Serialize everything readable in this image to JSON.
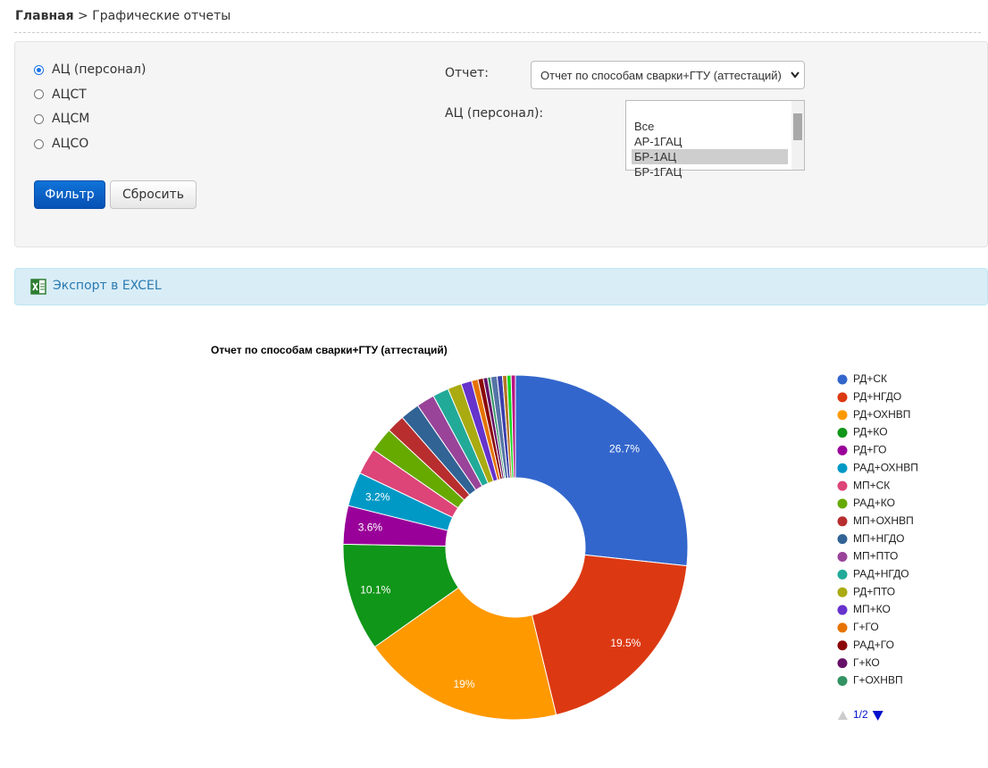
{
  "breadcrumb": {
    "home": "Главная",
    "separator": ">",
    "current": "Графические отчеты"
  },
  "filter": {
    "radios": [
      "АЦ (персонал)",
      "АЦСТ",
      "АЦСМ",
      "АЦСО"
    ],
    "report_label": "Отчет:",
    "report_value": "Отчет по способам сварки+ГТУ (аттестаций)",
    "list_label": "АЦ (персонал):",
    "list_options": [
      "Все",
      "АР-1ГАЦ",
      "БР-1АЦ",
      "БР-1ГАЦ"
    ],
    "buttons": [
      "Фильтр",
      "Сбросить"
    ]
  },
  "export": "Экспорт в EXCEL",
  "chart_data": {
    "type": "pie",
    "title": "Отчет по способам сварки+ГТУ (аттестаций)",
    "categories": [
      "РД+СК",
      "РД+НГДО",
      "РД+ОХНВП",
      "РД+КО",
      "РД+ГО",
      "РАД+ОХНВП",
      "МП+СК",
      "РАД+КО",
      "МП+ОХНВП",
      "МП+НГДО",
      "МП+ПТО",
      "РАД+НГДО",
      "РД+ПТО",
      "МП+КО",
      "Г+ГО",
      "РАД+ГО",
      "Г+КО",
      "Г+ОХНВП",
      null,
      null,
      null,
      null,
      null
    ],
    "values": [
      26.7,
      19.5,
      19,
      10.1,
      3.6,
      3.2,
      2.5,
      2.3,
      1.7,
      1.8,
      1.7,
      1.5,
      1.3,
      1.0,
      0.6,
      0.5,
      0.4,
      0.3,
      0.6,
      0.5,
      0.4,
      0.4,
      0.4
    ],
    "value_labels": [
      "26.7%",
      "19.5%",
      "19%",
      "10.1%",
      "3.6%",
      "3.2%",
      null,
      null,
      null,
      null,
      null,
      null,
      null,
      null,
      null,
      null,
      null,
      null,
      null,
      null,
      null,
      null,
      null
    ],
    "colors": [
      "#3366cc",
      "#dc3912",
      "#ff9900",
      "#109618",
      "#990099",
      "#0099c6",
      "#dd4477",
      "#66aa00",
      "#b82e2e",
      "#316395",
      "#994499",
      "#22aa99",
      "#aaaa11",
      "#6633cc",
      "#e67300",
      "#8b0707",
      "#651067",
      "#329262",
      "#5574a6",
      "#3b3eac",
      "#b77322",
      "#16d620",
      "#b91383"
    ],
    "legend_page": "1/2"
  }
}
